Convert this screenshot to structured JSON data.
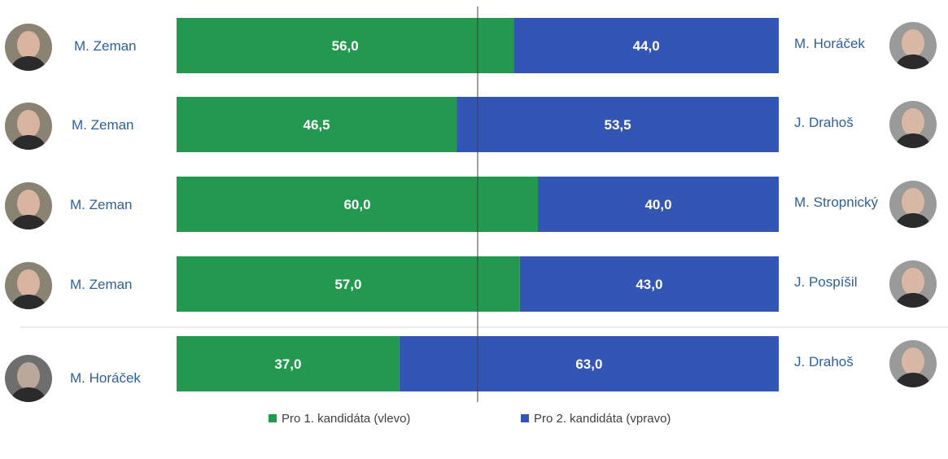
{
  "chart_data": {
    "type": "bar",
    "orientation": "horizontal-stacked-100",
    "colors": {
      "first": "#22994f",
      "second": "#3355b5",
      "names": "#2e5f9e"
    },
    "rows": [
      {
        "left_name": "M. Zeman",
        "right_name": "M. Horáček",
        "left_value": 56.0,
        "right_value": 44.0,
        "left_label": "56,0",
        "right_label": "44,0"
      },
      {
        "left_name": "M. Zeman",
        "right_name": "J. Drahoš",
        "left_value": 46.5,
        "right_value": 53.5,
        "left_label": "46,5",
        "right_label": "53,5"
      },
      {
        "left_name": "M. Zeman",
        "right_name": "M. Stropnický",
        "left_value": 60.0,
        "right_value": 40.0,
        "left_label": "60,0",
        "right_label": "40,0"
      },
      {
        "left_name": "M. Zeman",
        "right_name": "J. Pospíšil",
        "left_value": 57.0,
        "right_value": 43.0,
        "left_label": "57,0",
        "right_label": "43,0"
      },
      {
        "left_name": "M. Horáček",
        "right_name": "J. Drahoš",
        "left_value": 37.0,
        "right_value": 63.0,
        "left_label": "37,0",
        "right_label": "63,0"
      }
    ],
    "legend": [
      {
        "label": "Pro 1. kandidáta (vlevo)",
        "color": "#22994f"
      },
      {
        "label": "Pro 2. kandidáta (vpravo)",
        "color": "#3355b5"
      }
    ],
    "reference_line_value": 50,
    "legend_position": "bottom"
  }
}
